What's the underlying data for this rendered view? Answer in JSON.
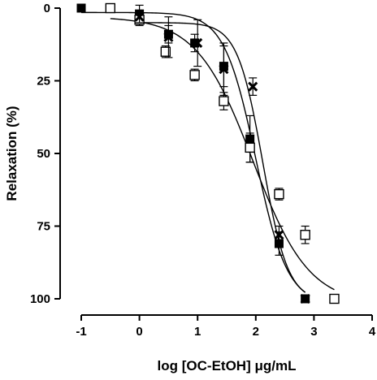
{
  "chart_data": {
    "type": "scatter",
    "title": "",
    "xlabel": "log [OC-EtOH] μg/mL",
    "ylabel": "Relaxation (%)",
    "xlim": [
      -1,
      4
    ],
    "ylim": [
      0,
      100
    ],
    "y_inverted": true,
    "x_ticks": [
      "-1",
      "0",
      "1",
      "2",
      "3",
      "4"
    ],
    "y_ticks": [
      "0",
      "25",
      "50",
      "75",
      "100"
    ],
    "grid": false,
    "legend": "none",
    "series": [
      {
        "marker": "filled-square",
        "color": "#000000",
        "points": [
          {
            "x": -1.0,
            "y": 0,
            "err": 0
          },
          {
            "x": 0.0,
            "y": 2,
            "err": 3
          },
          {
            "x": 0.5,
            "y": 9,
            "err": 3
          },
          {
            "x": 0.95,
            "y": 12,
            "err": 3
          },
          {
            "x": 1.45,
            "y": 20,
            "err": 7
          },
          {
            "x": 1.9,
            "y": 45,
            "err": 8
          },
          {
            "x": 2.4,
            "y": 81,
            "err": 4
          },
          {
            "x": 2.85,
            "y": 100,
            "err": 0
          }
        ],
        "curve": {
          "top": 1.5,
          "bottom": 102,
          "logEC50": 2.0,
          "hill": 1.6
        }
      },
      {
        "marker": "open-square",
        "color": "#000000",
        "points": [
          {
            "x": -0.5,
            "y": 0,
            "err": 0
          },
          {
            "x": 0.0,
            "y": 4,
            "err": 2
          },
          {
            "x": 0.45,
            "y": 15,
            "err": 2
          },
          {
            "x": 0.95,
            "y": 23,
            "err": 2
          },
          {
            "x": 1.45,
            "y": 32,
            "err": 3
          },
          {
            "x": 1.9,
            "y": 48,
            "err": 5
          },
          {
            "x": 2.4,
            "y": 64,
            "err": 2
          },
          {
            "x": 2.85,
            "y": 78,
            "err": 3
          },
          {
            "x": 3.35,
            "y": 100,
            "err": 0
          }
        ],
        "curve": {
          "top": 3,
          "bottom": 102,
          "logEC50": 1.95,
          "hill": 0.9
        }
      },
      {
        "marker": "cross",
        "color": "#000000",
        "points": [
          {
            "x": 0.0,
            "y": 3,
            "err": 2
          },
          {
            "x": 0.5,
            "y": 10,
            "err": 7
          },
          {
            "x": 1.0,
            "y": 12,
            "err": 8
          },
          {
            "x": 1.45,
            "y": 21,
            "err": 9
          },
          {
            "x": 1.95,
            "y": 27,
            "err": 3
          },
          {
            "x": 2.4,
            "y": 78,
            "err": 3
          },
          {
            "x": 2.85,
            "y": 100,
            "err": 0
          }
        ],
        "curve": {
          "top": 5,
          "bottom": 101,
          "logEC50": 2.12,
          "hill": 2.0
        }
      }
    ]
  }
}
